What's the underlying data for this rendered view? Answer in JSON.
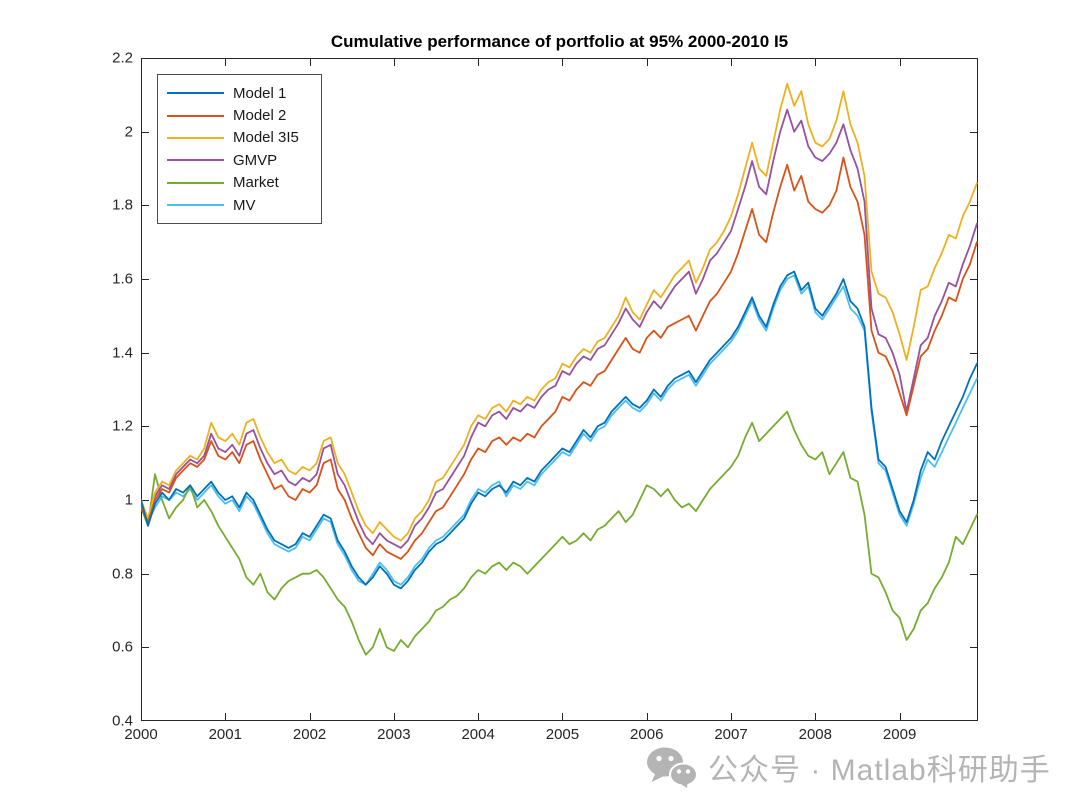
{
  "figure": {
    "background": "#ffffff",
    "axis_color": "#262626",
    "watermark": {
      "text": "公众号 · Matlab科研助手",
      "icon": "wechat-icon",
      "color": "#b4b4b4"
    }
  },
  "chart_data": {
    "type": "line",
    "title": "Cumulative performance of portfolio at 95% 2000-2010 I5",
    "xlabel": "",
    "ylabel": "",
    "grid": false,
    "legend_position": "top-left",
    "xlim": [
      2000,
      2009.93
    ],
    "ylim": [
      0.4,
      2.2
    ],
    "x_tick_values": [
      2000,
      2001,
      2002,
      2003,
      2004,
      2005,
      2006,
      2007,
      2008,
      2009
    ],
    "x_tick_labels": [
      "2000",
      "2001",
      "2002",
      "2003",
      "2004",
      "2005",
      "2006",
      "2007",
      "2008",
      "2009"
    ],
    "y_tick_values": [
      0.4,
      0.6,
      0.8,
      1.0,
      1.2,
      1.4,
      1.6,
      1.8,
      2.0,
      2.2
    ],
    "y_tick_labels": [
      "0.4",
      "0.6",
      "0.8",
      "1",
      "1.2",
      "1.4",
      "1.6",
      "1.8",
      "2",
      "2.2"
    ],
    "x_start": 2000,
    "x_step": 0.0833333,
    "n_points": 120,
    "x_unit": "year",
    "series": [
      {
        "name": "Model 1",
        "color": "#0072BD",
        "values": [
          1.0,
          0.93,
          0.99,
          1.02,
          1.0,
          1.03,
          1.02,
          1.04,
          1.01,
          1.03,
          1.05,
          1.02,
          1.0,
          1.01,
          0.98,
          1.02,
          1.0,
          0.96,
          0.92,
          0.89,
          0.88,
          0.87,
          0.88,
          0.91,
          0.9,
          0.93,
          0.96,
          0.95,
          0.89,
          0.86,
          0.82,
          0.79,
          0.77,
          0.79,
          0.82,
          0.8,
          0.77,
          0.76,
          0.78,
          0.81,
          0.83,
          0.86,
          0.88,
          0.89,
          0.91,
          0.93,
          0.95,
          0.99,
          1.02,
          1.01,
          1.03,
          1.04,
          1.02,
          1.05,
          1.04,
          1.06,
          1.05,
          1.08,
          1.1,
          1.12,
          1.14,
          1.13,
          1.16,
          1.19,
          1.17,
          1.2,
          1.21,
          1.24,
          1.26,
          1.28,
          1.26,
          1.25,
          1.27,
          1.3,
          1.28,
          1.31,
          1.33,
          1.34,
          1.35,
          1.32,
          1.35,
          1.38,
          1.4,
          1.42,
          1.44,
          1.47,
          1.51,
          1.55,
          1.5,
          1.47,
          1.53,
          1.58,
          1.61,
          1.62,
          1.57,
          1.59,
          1.52,
          1.5,
          1.53,
          1.56,
          1.6,
          1.54,
          1.52,
          1.47,
          1.25,
          1.11,
          1.09,
          1.03,
          0.97,
          0.94,
          1.0,
          1.08,
          1.13,
          1.11,
          1.16,
          1.2,
          1.24,
          1.28,
          1.33,
          1.37
        ]
      },
      {
        "name": "Model 2",
        "color": "#D95319",
        "values": [
          0.98,
          0.94,
          1.0,
          1.03,
          1.02,
          1.06,
          1.08,
          1.1,
          1.09,
          1.11,
          1.16,
          1.12,
          1.11,
          1.13,
          1.1,
          1.15,
          1.16,
          1.11,
          1.07,
          1.03,
          1.04,
          1.01,
          1.0,
          1.03,
          1.02,
          1.04,
          1.1,
          1.11,
          1.03,
          1.0,
          0.95,
          0.91,
          0.87,
          0.85,
          0.88,
          0.86,
          0.85,
          0.84,
          0.86,
          0.89,
          0.91,
          0.94,
          0.97,
          0.98,
          1.01,
          1.04,
          1.07,
          1.11,
          1.14,
          1.13,
          1.16,
          1.17,
          1.15,
          1.17,
          1.16,
          1.18,
          1.17,
          1.2,
          1.22,
          1.24,
          1.28,
          1.27,
          1.3,
          1.32,
          1.31,
          1.34,
          1.35,
          1.38,
          1.41,
          1.44,
          1.41,
          1.4,
          1.44,
          1.46,
          1.44,
          1.47,
          1.48,
          1.49,
          1.5,
          1.46,
          1.5,
          1.54,
          1.56,
          1.59,
          1.62,
          1.67,
          1.73,
          1.79,
          1.72,
          1.7,
          1.78,
          1.85,
          1.91,
          1.84,
          1.88,
          1.81,
          1.79,
          1.78,
          1.8,
          1.84,
          1.93,
          1.85,
          1.81,
          1.72,
          1.46,
          1.4,
          1.39,
          1.35,
          1.29,
          1.23,
          1.31,
          1.39,
          1.41,
          1.46,
          1.5,
          1.55,
          1.54,
          1.6,
          1.64,
          1.7
        ]
      },
      {
        "name": "Model 3I5",
        "color": "#EDB120",
        "values": [
          1.0,
          0.95,
          1.02,
          1.05,
          1.04,
          1.08,
          1.1,
          1.12,
          1.11,
          1.14,
          1.21,
          1.17,
          1.16,
          1.18,
          1.15,
          1.21,
          1.22,
          1.17,
          1.13,
          1.1,
          1.11,
          1.08,
          1.07,
          1.09,
          1.08,
          1.1,
          1.16,
          1.17,
          1.1,
          1.07,
          1.02,
          0.97,
          0.93,
          0.91,
          0.94,
          0.92,
          0.9,
          0.89,
          0.91,
          0.95,
          0.97,
          1.0,
          1.05,
          1.06,
          1.09,
          1.12,
          1.15,
          1.2,
          1.23,
          1.22,
          1.25,
          1.26,
          1.24,
          1.27,
          1.26,
          1.28,
          1.27,
          1.3,
          1.32,
          1.33,
          1.37,
          1.36,
          1.39,
          1.41,
          1.4,
          1.43,
          1.44,
          1.47,
          1.5,
          1.55,
          1.51,
          1.49,
          1.53,
          1.57,
          1.55,
          1.58,
          1.61,
          1.63,
          1.65,
          1.59,
          1.63,
          1.68,
          1.7,
          1.73,
          1.77,
          1.83,
          1.9,
          1.97,
          1.9,
          1.88,
          1.97,
          2.06,
          2.13,
          2.07,
          2.11,
          2.02,
          1.97,
          1.96,
          1.98,
          2.03,
          2.11,
          2.02,
          1.97,
          1.88,
          1.62,
          1.56,
          1.55,
          1.51,
          1.45,
          1.38,
          1.47,
          1.57,
          1.58,
          1.63,
          1.67,
          1.72,
          1.71,
          1.77,
          1.81,
          1.86
        ]
      },
      {
        "name": "GMVP",
        "color": "#9651A0",
        "values": [
          0.99,
          0.94,
          1.01,
          1.04,
          1.03,
          1.07,
          1.09,
          1.11,
          1.1,
          1.12,
          1.18,
          1.14,
          1.13,
          1.15,
          1.12,
          1.18,
          1.19,
          1.14,
          1.1,
          1.07,
          1.08,
          1.05,
          1.04,
          1.06,
          1.05,
          1.07,
          1.14,
          1.15,
          1.07,
          1.04,
          0.99,
          0.94,
          0.9,
          0.88,
          0.91,
          0.89,
          0.88,
          0.87,
          0.89,
          0.93,
          0.95,
          0.98,
          1.02,
          1.03,
          1.06,
          1.09,
          1.12,
          1.17,
          1.21,
          1.2,
          1.23,
          1.24,
          1.22,
          1.25,
          1.24,
          1.26,
          1.25,
          1.28,
          1.3,
          1.31,
          1.35,
          1.34,
          1.37,
          1.39,
          1.38,
          1.41,
          1.42,
          1.45,
          1.48,
          1.52,
          1.49,
          1.47,
          1.51,
          1.54,
          1.52,
          1.55,
          1.58,
          1.6,
          1.62,
          1.56,
          1.6,
          1.65,
          1.67,
          1.7,
          1.73,
          1.79,
          1.85,
          1.92,
          1.85,
          1.83,
          1.92,
          2.0,
          2.06,
          2.0,
          2.03,
          1.96,
          1.93,
          1.92,
          1.94,
          1.97,
          2.02,
          1.95,
          1.9,
          1.81,
          1.52,
          1.45,
          1.44,
          1.4,
          1.34,
          1.24,
          1.33,
          1.42,
          1.44,
          1.5,
          1.54,
          1.59,
          1.58,
          1.64,
          1.69,
          1.75
        ]
      },
      {
        "name": "Market",
        "color": "#77AC30",
        "values": [
          0.98,
          0.93,
          1.07,
          1.0,
          0.95,
          0.98,
          1.0,
          1.04,
          0.98,
          1.0,
          0.97,
          0.93,
          0.9,
          0.87,
          0.84,
          0.79,
          0.77,
          0.8,
          0.75,
          0.73,
          0.76,
          0.78,
          0.79,
          0.8,
          0.8,
          0.81,
          0.79,
          0.76,
          0.73,
          0.71,
          0.67,
          0.62,
          0.58,
          0.6,
          0.65,
          0.6,
          0.59,
          0.62,
          0.6,
          0.63,
          0.65,
          0.67,
          0.7,
          0.71,
          0.73,
          0.74,
          0.76,
          0.79,
          0.81,
          0.8,
          0.82,
          0.83,
          0.81,
          0.83,
          0.82,
          0.8,
          0.82,
          0.84,
          0.86,
          0.88,
          0.9,
          0.88,
          0.89,
          0.91,
          0.89,
          0.92,
          0.93,
          0.95,
          0.97,
          0.94,
          0.96,
          1.0,
          1.04,
          1.03,
          1.01,
          1.03,
          1.0,
          0.98,
          0.99,
          0.97,
          1.0,
          1.03,
          1.05,
          1.07,
          1.09,
          1.12,
          1.17,
          1.21,
          1.16,
          1.18,
          1.2,
          1.22,
          1.24,
          1.19,
          1.15,
          1.12,
          1.11,
          1.13,
          1.07,
          1.1,
          1.13,
          1.06,
          1.05,
          0.96,
          0.8,
          0.79,
          0.75,
          0.7,
          0.68,
          0.62,
          0.65,
          0.7,
          0.72,
          0.76,
          0.79,
          0.83,
          0.9,
          0.88,
          0.92,
          0.96
        ]
      },
      {
        "name": "MV",
        "color": "#4DBEEE",
        "values": [
          0.99,
          0.94,
          0.98,
          1.01,
          1.0,
          1.02,
          1.01,
          1.03,
          1.0,
          1.02,
          1.04,
          1.01,
          0.99,
          1.0,
          0.97,
          1.01,
          0.99,
          0.95,
          0.91,
          0.88,
          0.87,
          0.86,
          0.87,
          0.9,
          0.89,
          0.92,
          0.95,
          0.94,
          0.88,
          0.85,
          0.81,
          0.78,
          0.77,
          0.8,
          0.83,
          0.81,
          0.78,
          0.77,
          0.79,
          0.82,
          0.84,
          0.87,
          0.89,
          0.9,
          0.92,
          0.94,
          0.96,
          1.0,
          1.03,
          1.02,
          1.04,
          1.05,
          1.01,
          1.04,
          1.03,
          1.05,
          1.04,
          1.07,
          1.09,
          1.11,
          1.13,
          1.12,
          1.15,
          1.18,
          1.16,
          1.19,
          1.2,
          1.23,
          1.25,
          1.27,
          1.25,
          1.24,
          1.26,
          1.29,
          1.27,
          1.3,
          1.32,
          1.33,
          1.34,
          1.31,
          1.34,
          1.37,
          1.39,
          1.41,
          1.43,
          1.46,
          1.5,
          1.54,
          1.49,
          1.46,
          1.52,
          1.57,
          1.6,
          1.61,
          1.56,
          1.58,
          1.51,
          1.49,
          1.52,
          1.55,
          1.58,
          1.52,
          1.5,
          1.46,
          1.24,
          1.1,
          1.08,
          1.02,
          0.96,
          0.93,
          0.99,
          1.06,
          1.11,
          1.09,
          1.13,
          1.17,
          1.21,
          1.25,
          1.29,
          1.33
        ]
      }
    ]
  }
}
